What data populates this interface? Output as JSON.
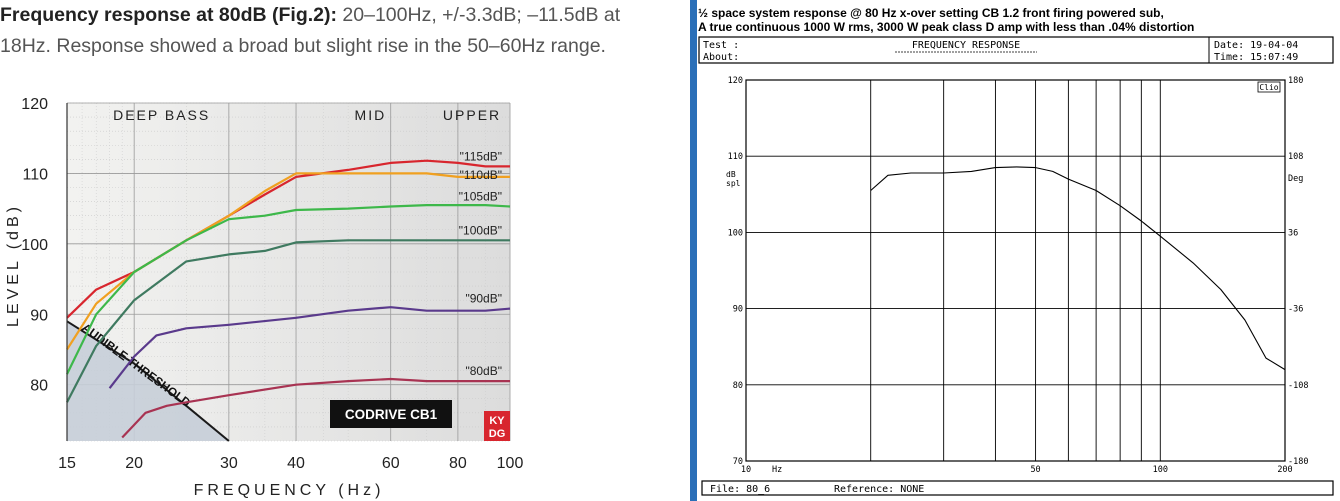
{
  "caption": {
    "bold": "Frequency response at 80dB (Fig.2):",
    "line1_rest": " 20–100Hz, +/-3.3dB; –11.5dB at",
    "line2": "18Hz. Response showed a broad but slight rise in the 50–60Hz range."
  },
  "chart_data": [
    {
      "type": "line",
      "xscale": "log",
      "xlabel": "FREQUENCY (Hz)",
      "ylabel": "LEVEL (dB)",
      "xlim": [
        15,
        100
      ],
      "ylim": [
        72,
        120
      ],
      "xticks": [
        "15",
        "20",
        "30",
        "40",
        "60",
        "80",
        "100"
      ],
      "yticks": [
        "80",
        "90",
        "100",
        "110",
        "120"
      ],
      "bands": [
        "DEEP BASS",
        "MID",
        "UPPER"
      ],
      "badge": "CODRIVE CB1",
      "logo": "KY DG",
      "threshold_label": "AUDIBLE THRESHOLD",
      "threshold": [
        [
          15,
          89
        ],
        [
          20,
          83
        ],
        [
          25,
          77
        ],
        [
          30,
          72
        ]
      ],
      "series": [
        {
          "name": "\"115dB\"",
          "color": "#d8262e",
          "points": [
            [
              15,
              89.5
            ],
            [
              17,
              93.5
            ],
            [
              20,
              96
            ],
            [
              25,
              100.5
            ],
            [
              30,
              104
            ],
            [
              35,
              107
            ],
            [
              40,
              109.5
            ],
            [
              50,
              110.5
            ],
            [
              60,
              111.5
            ],
            [
              70,
              111.8
            ],
            [
              80,
              111.5
            ],
            [
              90,
              111
            ],
            [
              100,
              111
            ]
          ]
        },
        {
          "name": "\"110dB\"",
          "color": "#f0a020",
          "points": [
            [
              15,
              85
            ],
            [
              17,
              91.5
            ],
            [
              20,
              96
            ],
            [
              25,
              100.5
            ],
            [
              30,
              104
            ],
            [
              35,
              107.5
            ],
            [
              40,
              110
            ],
            [
              50,
              110
            ],
            [
              60,
              110
            ],
            [
              70,
              110
            ],
            [
              80,
              109.5
            ],
            [
              90,
              109.5
            ],
            [
              100,
              109.5
            ]
          ]
        },
        {
          "name": "\"105dB\"",
          "color": "#3db84a",
          "points": [
            [
              15,
              81.5
            ],
            [
              17,
              90
            ],
            [
              20,
              96
            ],
            [
              25,
              100.5
            ],
            [
              30,
              103.5
            ],
            [
              35,
              104
            ],
            [
              40,
              104.8
            ],
            [
              50,
              105
            ],
            [
              60,
              105.3
            ],
            [
              70,
              105.5
            ],
            [
              80,
              105.5
            ],
            [
              90,
              105.5
            ],
            [
              100,
              105.3
            ]
          ]
        },
        {
          "name": "\"100dB\"",
          "color": "#3f7a60",
          "points": [
            [
              15,
              77.5
            ],
            [
              17,
              85.5
            ],
            [
              20,
              92
            ],
            [
              25,
              97.5
            ],
            [
              30,
              98.5
            ],
            [
              35,
              99
            ],
            [
              40,
              100.2
            ],
            [
              50,
              100.5
            ],
            [
              60,
              100.5
            ],
            [
              70,
              100.5
            ],
            [
              80,
              100.5
            ],
            [
              90,
              100.5
            ],
            [
              100,
              100.5
            ]
          ]
        },
        {
          "name": "\"90dB\"",
          "color": "#5a3a8c",
          "points": [
            [
              18,
              79.5
            ],
            [
              20,
              84
            ],
            [
              22,
              87
            ],
            [
              25,
              88
            ],
            [
              30,
              88.5
            ],
            [
              40,
              89.5
            ],
            [
              50,
              90.5
            ],
            [
              60,
              91
            ],
            [
              70,
              90.5
            ],
            [
              80,
              90.5
            ],
            [
              90,
              90.5
            ],
            [
              100,
              90.8
            ]
          ]
        },
        {
          "name": "\"80dB\"",
          "color": "#a83352",
          "points": [
            [
              19,
              72.5
            ],
            [
              21,
              76
            ],
            [
              23,
              77
            ],
            [
              25,
              77.5
            ],
            [
              30,
              78.5
            ],
            [
              40,
              80
            ],
            [
              50,
              80.5
            ],
            [
              60,
              80.8
            ],
            [
              70,
              80.5
            ],
            [
              80,
              80.5
            ],
            [
              90,
              80.5
            ],
            [
              100,
              80.5
            ]
          ]
        }
      ]
    },
    {
      "type": "line",
      "xscale": "log",
      "title": "FREQUENCY RESPONSE",
      "xlabel": "Hz",
      "ylabel": "dB spl",
      "y2label": "Deg",
      "xlim": [
        10,
        200
      ],
      "ylim": [
        70,
        120
      ],
      "xticks": [
        "10",
        "50",
        "100",
        "200"
      ],
      "yticks": [
        "70",
        "80",
        "90",
        "100",
        "110",
        "120"
      ],
      "y2ticks": [
        "-180",
        "-108",
        "-36",
        "36",
        "108",
        "180"
      ],
      "corner_label": "Clio",
      "series": [
        {
          "points": [
            [
              20,
              105.5
            ],
            [
              22,
              107.5
            ],
            [
              25,
              107.8
            ],
            [
              30,
              107.8
            ],
            [
              35,
              108
            ],
            [
              40,
              108.5
            ],
            [
              45,
              108.6
            ],
            [
              50,
              108.5
            ],
            [
              55,
              108
            ],
            [
              60,
              107
            ],
            [
              70,
              105.5
            ],
            [
              80,
              103.5
            ],
            [
              90,
              101.5
            ],
            [
              100,
              99.5
            ],
            [
              120,
              96
            ],
            [
              140,
              92.5
            ],
            [
              160,
              88.5
            ],
            [
              180,
              83.5
            ],
            [
              200,
              82
            ]
          ]
        }
      ]
    }
  ],
  "right_header": {
    "line1": "½ space system response @ 80 Hz x-over setting    CB 1.2 front firing powered sub,",
    "line2": "A true continuous 1000 W rms, 3000 W peak class D amp with less than .04% distortion",
    "test_label": "Test :",
    "about_label": "About:",
    "date_label": "Date: 19-04-04",
    "time_label": "Time: 15:07:49",
    "file_label": "File: 80_6",
    "reference_label": "Reference: NONE"
  }
}
